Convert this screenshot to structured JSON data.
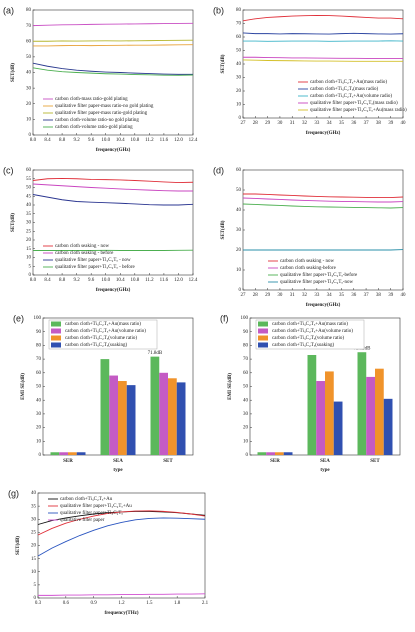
{
  "chart_data": [
    {
      "type": "line",
      "label": "(a)",
      "x_label": "frequency(GHz)",
      "y_label": "SET(dB)",
      "legend": "lower left",
      "x": [
        8.0,
        8.4,
        8.8,
        9.2,
        9.6,
        10.0,
        10.4,
        10.8,
        11.2,
        11.6,
        12.0,
        12.4
      ],
      "xlim": [
        8.0,
        12.4
      ],
      "xticks": [
        {
          "value": 8,
          "label": "8.0"
        },
        8.4,
        8.8,
        9.2,
        9.6,
        {
          "value": 10,
          "label": "10.0"
        },
        10.4,
        10.8,
        11.2,
        11.6,
        {
          "value": 12,
          "label": "12.0"
        },
        12.4
      ],
      "ylim": [
        0,
        80
      ],
      "yticks": [
        0,
        10,
        20,
        30,
        40,
        50,
        60,
        70,
        80
      ],
      "series": [
        {
          "name": "carbon cloth-mass ratio-gold plating",
          "color": "#c94fc4",
          "values": [
            70,
            70.3,
            70.5,
            70.6,
            70.8,
            70.9,
            71,
            71.1,
            71.2,
            71.3,
            71.4,
            71.5
          ]
        },
        {
          "name": "qualitative filter paper-mass ratio-no gold plating",
          "color": "#e8a33a",
          "values": [
            57,
            57,
            57.2,
            57.3,
            57.2,
            57.3,
            57.4,
            57.5,
            57.5,
            57.6,
            57.7,
            57.8
          ]
        },
        {
          "name": "qualitative filter paper-mass ratio-gold plating",
          "color": "#b6b62e",
          "values": [
            60,
            60,
            60.2,
            60.1,
            60.2,
            60.3,
            60.2,
            60.3,
            60.4,
            60.5,
            60.6,
            60.7
          ]
        },
        {
          "name": "carbon cloth-volume ratio-no gold plating",
          "color": "#2b3a8f",
          "values": [
            46,
            44,
            42.5,
            41.5,
            40.8,
            40.3,
            40,
            39.6,
            39.3,
            39,
            38.8,
            38.8
          ]
        },
        {
          "name": "carbon cloth-volume ratio-gold plating",
          "color": "#4caf50",
          "values": [
            43,
            41.5,
            40.5,
            40,
            39.6,
            39.2,
            39,
            38.7,
            38.5,
            38.3,
            38.2,
            38.4
          ]
        }
      ]
    },
    {
      "type": "line",
      "label": "(b)",
      "x_label": "frequency(GHz)",
      "y_label": "SET(dB)",
      "legend": "lower right",
      "x": [
        27,
        28,
        29,
        30,
        31,
        32,
        33,
        34,
        35,
        36,
        37,
        38,
        39,
        40
      ],
      "xlim": [
        27,
        40
      ],
      "xticks": [
        27,
        28,
        29,
        30,
        31,
        32,
        33,
        34,
        35,
        36,
        37,
        38,
        39,
        40
      ],
      "ylim": [
        0,
        80
      ],
      "yticks": [
        0,
        10,
        20,
        30,
        40,
        50,
        60,
        70,
        80
      ],
      "series": [
        {
          "name": "carbon cloth+Ti₃C₂Tₓ+Au(mass radio)",
          "color": "#e0303a",
          "values": [
            72,
            73.5,
            74.5,
            75,
            75.5,
            75.8,
            76,
            75.9,
            75.5,
            75,
            74.5,
            74,
            74,
            73.5
          ]
        },
        {
          "name": "carbon cloth+Ti₃C₂Tₓ(mass radio)",
          "color": "#2a43a0",
          "values": [
            63,
            62.5,
            62.5,
            62.3,
            62.5,
            62.4,
            62.3,
            62.2,
            62.5,
            62.7,
            62.5,
            62.3,
            62.2,
            62.4
          ]
        },
        {
          "name": "carbon cloth+Ti₃C₂Tₓ+Au(volume radio)",
          "color": "#3cb4c8",
          "values": [
            57,
            57,
            56.8,
            56.9,
            57,
            57,
            57,
            56.8,
            56.9,
            57,
            57,
            57,
            57.2,
            57
          ]
        },
        {
          "name": "qualitative filter paper+Ti₃C₂Tₓ(mass radio)",
          "color": "#c945c0",
          "values": [
            45,
            45,
            44.8,
            44.7,
            44.5,
            44.5,
            44.4,
            44.3,
            44.2,
            44.2,
            44.1,
            44,
            44,
            44
          ]
        },
        {
          "name": "qualitative filter paper+Ti₃C₂Tₓ+Au(mass radio)",
          "color": "#d4c02a",
          "values": [
            43,
            42.8,
            42.6,
            42.5,
            42.4,
            42.3,
            42.2,
            42.2,
            42.1,
            42,
            42,
            42,
            42,
            42
          ]
        }
      ]
    },
    {
      "type": "line",
      "label": "(c)",
      "x_label": "frequency(GHz)",
      "y_label": "SET(dB)",
      "legend": "lower left",
      "x": [
        8.0,
        8.4,
        8.8,
        9.2,
        9.6,
        10.0,
        10.4,
        10.8,
        11.2,
        11.6,
        12.0,
        12.4
      ],
      "xlim": [
        8.0,
        12.4
      ],
      "xticks": [
        {
          "value": 8,
          "label": "8.0"
        },
        8.4,
        8.8,
        9.2,
        9.6,
        {
          "value": 10,
          "label": "10.0"
        },
        10.4,
        10.8,
        11.2,
        11.6,
        {
          "value": 12,
          "label": "12.0"
        },
        12.4
      ],
      "ylim": [
        0,
        60
      ],
      "yticks": [
        0,
        5,
        10,
        15,
        20,
        25,
        30,
        35,
        40,
        45,
        50,
        55,
        60
      ],
      "series": [
        {
          "name": "carbon cloth seaking - now",
          "color": "#e0303a",
          "values": [
            54,
            55,
            55.2,
            55,
            54.6,
            54.5,
            54.3,
            54,
            53.6,
            53.2,
            52.8,
            53
          ]
        },
        {
          "name": "carbon cloth seaking - before",
          "color": "#c945c0",
          "values": [
            52,
            51.5,
            51,
            50.5,
            50,
            49.6,
            49.2,
            48.8,
            48.5,
            48.2,
            48,
            48
          ]
        },
        {
          "name": "qualitative filter paper+Ti₃C₂Tₓ - now",
          "color": "#2a3590",
          "values": [
            46,
            44.5,
            43,
            42,
            41.6,
            41.3,
            41,
            40.6,
            40.2,
            40,
            40,
            40.4
          ]
        },
        {
          "name": "qualitative filter paper+Ti₃C₂Tₓ - before",
          "color": "#4caf50",
          "values": [
            14,
            14,
            14,
            14,
            14,
            14.1,
            14,
            14,
            14,
            14,
            14.1,
            14.2
          ]
        }
      ]
    },
    {
      "type": "line",
      "label": "(d)",
      "x_label": "frequency(GHz)",
      "y_label": "SET(dB)",
      "legend": "lower center",
      "x": [
        27,
        28,
        29,
        30,
        31,
        32,
        33,
        34,
        35,
        36,
        37,
        38,
        39,
        40
      ],
      "xlim": [
        27,
        40
      ],
      "xticks": [
        27,
        28,
        29,
        30,
        31,
        32,
        33,
        34,
        35,
        36,
        37,
        38,
        39,
        40
      ],
      "ylim": [
        0,
        60
      ],
      "yticks": [
        0,
        10,
        20,
        30,
        40,
        50,
        60
      ],
      "series": [
        {
          "name": "carbon cloth seaking - now",
          "color": "#e0303a",
          "values": [
            48,
            48,
            47.8,
            47.5,
            47.3,
            47,
            46.8,
            46.6,
            46.5,
            46.4,
            46.3,
            46.2,
            46.2,
            46.5
          ]
        },
        {
          "name": "carbon cloth seaking-before",
          "color": "#c945c0",
          "values": [
            46,
            45.8,
            45.5,
            45.3,
            45,
            44.8,
            44.6,
            44.4,
            44.3,
            44.2,
            44.1,
            44,
            44,
            44.2
          ]
        },
        {
          "name": "qualitative filter paper+Ti₃C₂Tₓ-before",
          "color": "#4caf50",
          "values": [
            43,
            42.8,
            42.5,
            42.3,
            42,
            41.8,
            41.6,
            41.5,
            41.4,
            41.3,
            41.2,
            41.1,
            41,
            41.2
          ]
        },
        {
          "name": "qualitative filter paper+Ti₃C₂Tₓ-now",
          "color": "#2a8fa8",
          "values": [
            20,
            20,
            20,
            20,
            20,
            20,
            20,
            20,
            20,
            20,
            20,
            20,
            20,
            20.2
          ]
        }
      ]
    },
    {
      "type": "bar",
      "label": "(e)",
      "x_label": "type",
      "y_label": "EMI SE(dB)",
      "legend": "upper left",
      "annotation": "71.8dB",
      "categories": [
        "SER",
        "SEA",
        "SET"
      ],
      "ylim": [
        0,
        100
      ],
      "yticks": [
        0,
        10,
        20,
        30,
        40,
        50,
        60,
        70,
        80,
        90,
        100
      ],
      "series": [
        {
          "name": "carbon cloth+Ti₃C₂Tₓ+Au(mass ratio)",
          "color": "#5cb85c",
          "values": [
            2,
            70,
            71.8
          ]
        },
        {
          "name": "carbon cloth+Ti₃C₂Tₓ+Au(volume ratio)",
          "color": "#c45bc4",
          "values": [
            2,
            58,
            60
          ]
        },
        {
          "name": "carbon cloth+Ti₃C₂Tₓ(volume ratio)",
          "color": "#f0932b",
          "values": [
            2,
            54,
            56
          ]
        },
        {
          "name": "carbon cloth+Ti₃C₂Tₓ(soaking)",
          "color": "#3050b0",
          "values": [
            2,
            51,
            53
          ]
        }
      ]
    },
    {
      "type": "bar",
      "label": "(f)",
      "x_label": "type",
      "y_label": "EMI SE(dB)",
      "legend": "upper left",
      "annotation": "75.02dB",
      "categories": [
        "SER",
        "SEA",
        "SET"
      ],
      "ylim": [
        0,
        100
      ],
      "yticks": [
        0,
        10,
        20,
        30,
        40,
        50,
        60,
        70,
        80,
        90,
        100
      ],
      "series": [
        {
          "name": "carbon cloth+Ti₃C₂Tₓ+Au(mass ratio)",
          "color": "#5cb85c",
          "values": [
            2,
            73,
            75.02
          ]
        },
        {
          "name": "carbon cloth+Ti₃C₂Tₓ+Au(volume ratio)",
          "color": "#c45bc4",
          "values": [
            2,
            54,
            57
          ]
        },
        {
          "name": "carbon cloth+Ti₃C₂Tₓ(volume ratio)",
          "color": "#f0932b",
          "values": [
            2,
            61,
            63
          ]
        },
        {
          "name": "carbon cloth+Ti₃C₂Tₓ(soaking)",
          "color": "#3050b0",
          "values": [
            2,
            39,
            41
          ]
        }
      ]
    },
    {
      "type": "line",
      "label": "(g)",
      "x_label": "frequency(THz)",
      "y_label": "SET(dB)",
      "legend": "upper left",
      "x": [
        0.3,
        0.45,
        0.6,
        0.75,
        0.9,
        1.05,
        1.2,
        1.35,
        1.5,
        1.65,
        1.8,
        1.95,
        2.1
      ],
      "xlim": [
        0.3,
        2.1
      ],
      "xticks": [
        0.3,
        0.6,
        0.9,
        1.2,
        1.5,
        1.8,
        2.1
      ],
      "ylim": [
        0,
        40
      ],
      "yticks": [
        0,
        5,
        10,
        15,
        20,
        25,
        30,
        35,
        40
      ],
      "series": [
        {
          "name": "carbon cloth+Ti₃C₂Tₓ+Au",
          "color": "#111111",
          "values": [
            28,
            29.5,
            30.5,
            31.3,
            32,
            32.5,
            32.8,
            33,
            33,
            32.8,
            32.5,
            32,
            31.5
          ]
        },
        {
          "name": "qualitative filter paper+Ti₃C₂Tₓ+Au",
          "color": "#e0303a",
          "values": [
            24,
            26.5,
            28.5,
            30,
            31.2,
            32.2,
            32.8,
            33.1,
            33.2,
            33,
            32.6,
            32,
            31.2
          ]
        },
        {
          "name": "qualitative filter paper+Ti₃C₂Tₓ",
          "color": "#2a55c0",
          "values": [
            16,
            19,
            21.5,
            23.8,
            25.8,
            27.5,
            28.8,
            29.8,
            30.3,
            30.5,
            30.4,
            30.2,
            30
          ]
        },
        {
          "name": "qualitative filter paper",
          "color": "#d04fd0",
          "values": [
            1,
            1,
            1.1,
            1.1,
            1.2,
            1.2,
            1.3,
            1.3,
            1.4,
            1.4,
            1.5,
            1.5,
            1.6
          ]
        }
      ]
    }
  ]
}
